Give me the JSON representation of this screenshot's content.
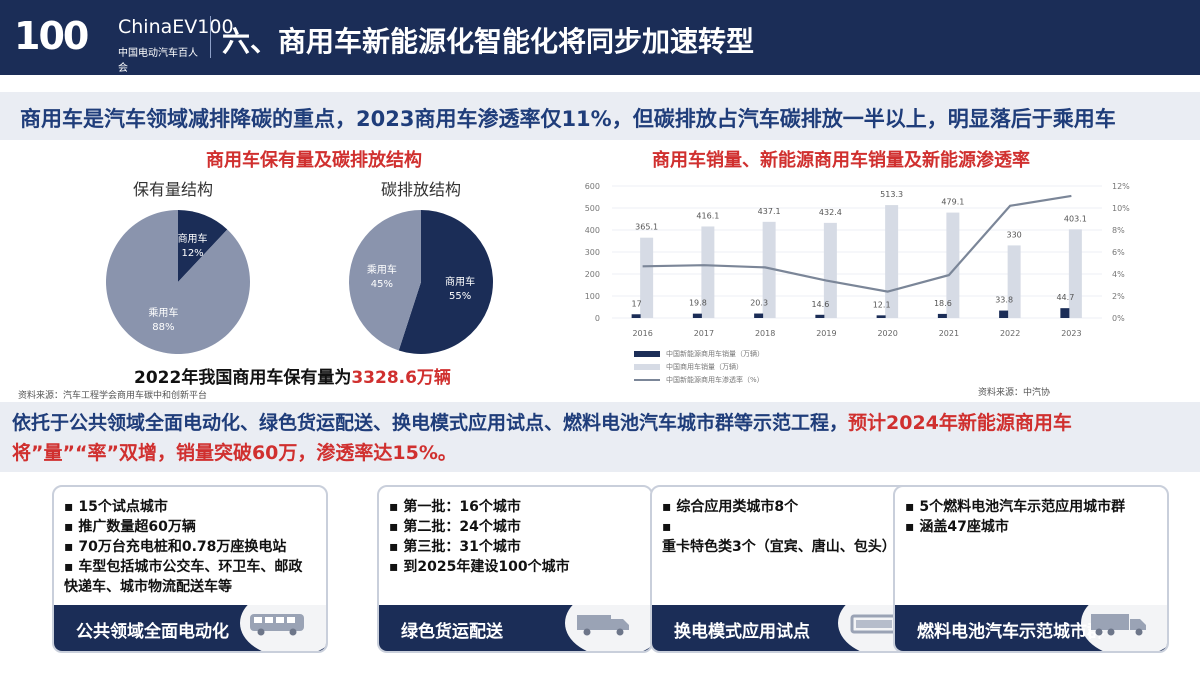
{
  "header": {
    "logo_number": "100",
    "logo_brand": "ChinaEV100",
    "logo_sub": "中国电动汽车百人会",
    "title": "六、商用车新能源化智能化将同步加速转型"
  },
  "headline": "商用车是汽车领域减排降碳的重点，2023商用车渗透率仅11%，但碳排放占汽车碳排放一半以上，明显落后于乘用车",
  "left_panel": {
    "title": "商用车保有量及碳排放结构",
    "pie1_title": "保有量结构",
    "pie2_title": "碳排放结构",
    "fleet_note_prefix": "2022年我国商用车保有量为",
    "fleet_note_value": "3328.6万辆",
    "source": "资料来源：汽车工程学会商用车碳中和创新平台"
  },
  "right_panel": {
    "title": "商用车销量、新能源商用车销量及新能源渗透率",
    "source": "资料来源：中汽协"
  },
  "chart_data": [
    {
      "type": "pie",
      "title": "保有量结构",
      "slices": [
        {
          "name": "商用车",
          "value": 12,
          "label": "12%",
          "color": "#1b2d57"
        },
        {
          "name": "乘用车",
          "value": 88,
          "label": "88%",
          "color": "#8a94ad"
        }
      ]
    },
    {
      "type": "pie",
      "title": "碳排放结构",
      "slices": [
        {
          "name": "商用车",
          "value": 55,
          "label": "55%",
          "color": "#1b2d57"
        },
        {
          "name": "乘用车",
          "value": 45,
          "label": "45%",
          "color": "#8a94ad"
        }
      ]
    },
    {
      "type": "bar",
      "title": "商用车销量、新能源商用车销量及新能源渗透率",
      "categories": [
        "2016",
        "2017",
        "2018",
        "2019",
        "2020",
        "2021",
        "2022",
        "2023"
      ],
      "series": [
        {
          "name": "中国新能源商用车销量（万辆）",
          "kind": "bar",
          "color": "#1b2d57",
          "values": [
            17,
            19.8,
            20.3,
            14.6,
            12.1,
            18.6,
            33.8,
            44.7
          ],
          "labels": [
            "17",
            "19.8",
            "20.3",
            "14.6",
            "12.1",
            "18.6",
            "33.8",
            "44.7"
          ]
        },
        {
          "name": "中国商用车销量（万辆）",
          "kind": "bar",
          "color": "#d6dbe5",
          "values": [
            365.1,
            416.1,
            437.1,
            432.4,
            513.3,
            479.1,
            330,
            403.1
          ],
          "labels": [
            "365.1",
            "416.1",
            "437.1",
            "432.4",
            "513.3",
            "479.1",
            "330",
            "403.1"
          ]
        },
        {
          "name": "中国新能源商用车渗透率（%）",
          "kind": "line",
          "axis": "right",
          "color": "#7b8698",
          "values": [
            4.7,
            4.8,
            4.6,
            3.4,
            2.4,
            3.9,
            10.2,
            11.1
          ]
        }
      ],
      "ylim": [
        0,
        600
      ],
      "yticks": [
        "0",
        "100",
        "200",
        "300",
        "400",
        "500",
        "600"
      ],
      "y2lim": [
        0,
        12
      ],
      "y2ticks": [
        "0%",
        "2%",
        "4%",
        "6%",
        "8%",
        "10%",
        "12%"
      ],
      "grid": true,
      "legend": "bottom-left"
    }
  ],
  "policy": {
    "text1": "依托于公共领域全面电动化、绿色货运配送、换电模式应用试点、燃料电池汽车城市群等示范工程，",
    "text2_hl": "预计2024年新能源",
    "text3": "商用车将”量”“率”双增，销量突破60万，渗透率达15%。"
  },
  "cards": [
    {
      "items": [
        "15个试点城市",
        "推广数量超60万辆",
        "70万台充电桩和0.78万座换电站",
        "车型包括城市公交车、环卫车、邮政快递车、城市物流配送车等"
      ],
      "footer": "公共领域全面电动化",
      "icon": "bus-icon"
    },
    {
      "items": [
        "第一批：16个城市",
        "第二批：24个城市",
        "第三批：31个城市",
        "到2025年建设100个城市"
      ],
      "footer": "绿色货运配送",
      "icon": "van-icon"
    },
    {
      "items": [
        "综合应用类城市8个",
        "重卡特色类3个（宜宾、唐山、包头）"
      ],
      "footer": "换电模式应用试点",
      "icon": "battery-icon"
    },
    {
      "items": [
        "5个燃料电池汽车示范应用城市群",
        "涵盖47座城市"
      ],
      "footer": "燃料电池汽车示范城市群",
      "icon": "truck-icon"
    }
  ]
}
